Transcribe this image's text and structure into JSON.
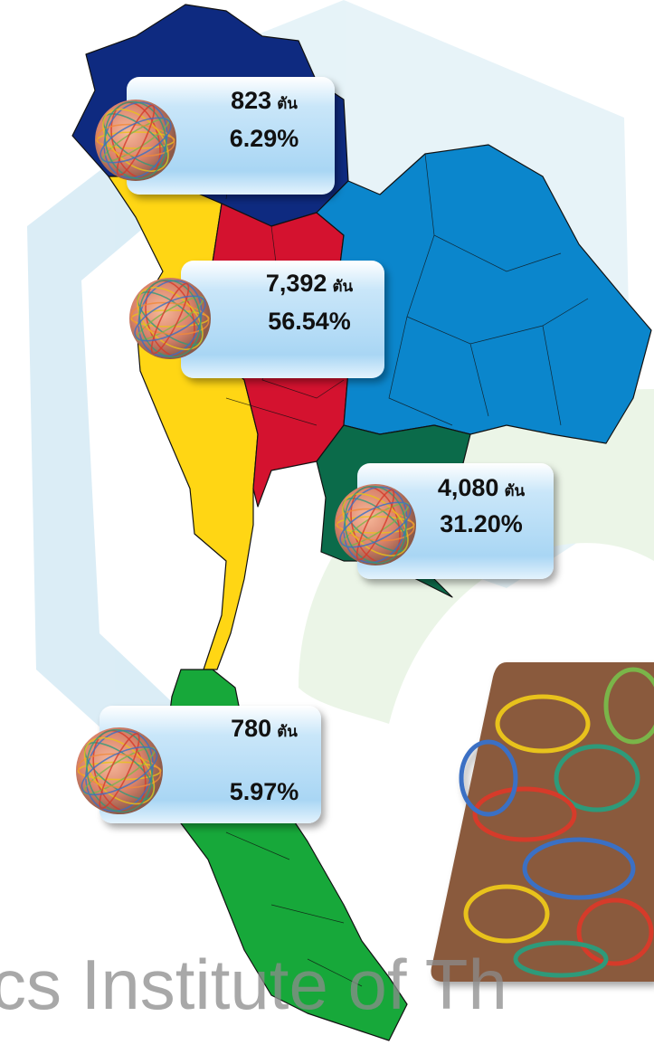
{
  "unit": "ตัน",
  "watermark": "cs Institute of Th",
  "regions": [
    {
      "amount": "823",
      "share": "6.29%"
    },
    {
      "amount": "7,392",
      "share": "56.54%"
    },
    {
      "amount": "4,080",
      "share": "31.20%"
    },
    {
      "amount": "780",
      "share": "5.97%"
    }
  ]
}
